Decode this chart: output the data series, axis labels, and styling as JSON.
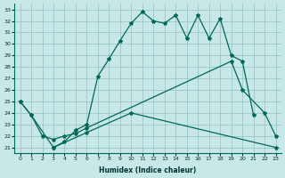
{
  "xlabel": "Humidex (Indice chaleur)",
  "bg_color": "#c8e8e8",
  "grid_color": "#90c0c0",
  "line_color": "#006858",
  "xlim": [
    -0.5,
    23.5
  ],
  "ylim": [
    20.5,
    33.5
  ],
  "line1_x": [
    0,
    1,
    3,
    4,
    5,
    6,
    7,
    8,
    9,
    10,
    11,
    12,
    13,
    14,
    15,
    16,
    17,
    18,
    19,
    20,
    21
  ],
  "line1_y": [
    25.0,
    23.8,
    21.0,
    21.5,
    22.5,
    23.0,
    27.2,
    28.7,
    30.3,
    31.8,
    32.8,
    32.0,
    31.8,
    32.5,
    30.5,
    32.5,
    30.5,
    32.2,
    29.0,
    28.5,
    23.8
  ],
  "line2_x": [
    0,
    1,
    2,
    3,
    4,
    5,
    6,
    19,
    20,
    22,
    23
  ],
  "line2_y": [
    25.0,
    23.8,
    22.0,
    21.7,
    22.0,
    22.2,
    22.7,
    28.5,
    26.0,
    24.0,
    22.0
  ],
  "line3_x": [
    3,
    6,
    10,
    23
  ],
  "line3_y": [
    21.0,
    22.3,
    24.0,
    21.0
  ]
}
